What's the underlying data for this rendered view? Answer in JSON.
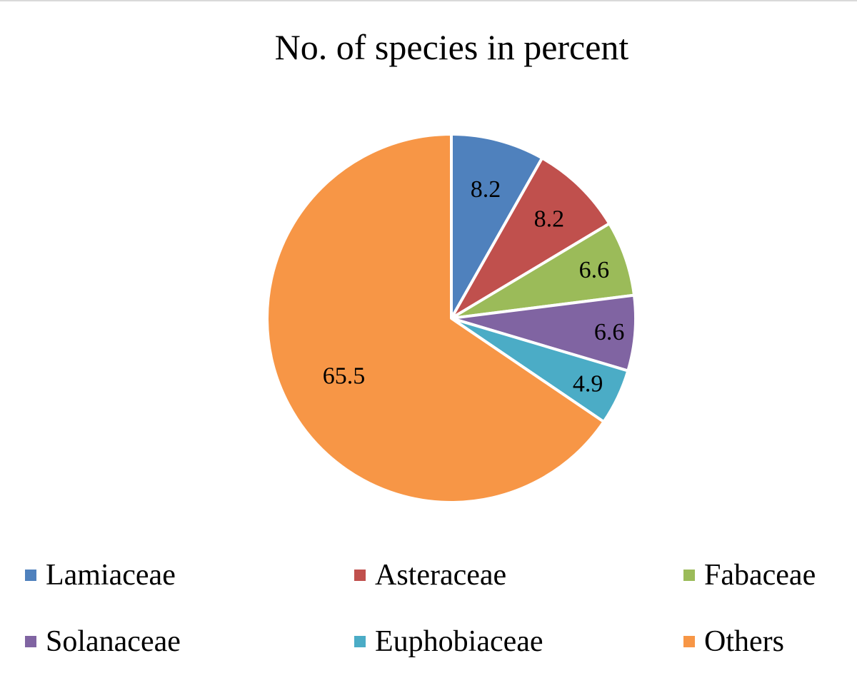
{
  "chart_data": {
    "type": "pie",
    "title": "No. of species in percent",
    "legend_position": "bottom",
    "slices": [
      {
        "label": "Lamiaceae",
        "value": 8.2,
        "value_label": "8.2",
        "color": "#4F81BD"
      },
      {
        "label": "Asteraceae",
        "value": 8.2,
        "value_label": "8.2",
        "color": "#C0504D"
      },
      {
        "label": "Fabaceae",
        "value": 6.6,
        "value_label": "6.6",
        "color": "#9BBB59"
      },
      {
        "label": "Solanaceae",
        "value": 6.6,
        "value_label": "6.6",
        "color": "#8064A2"
      },
      {
        "label": "Euphobiaceae",
        "value": 4.9,
        "value_label": "4.9",
        "color": "#4BACC6"
      },
      {
        "label": "Others",
        "value": 65.5,
        "value_label": "65.5",
        "color": "#F79646"
      }
    ]
  }
}
